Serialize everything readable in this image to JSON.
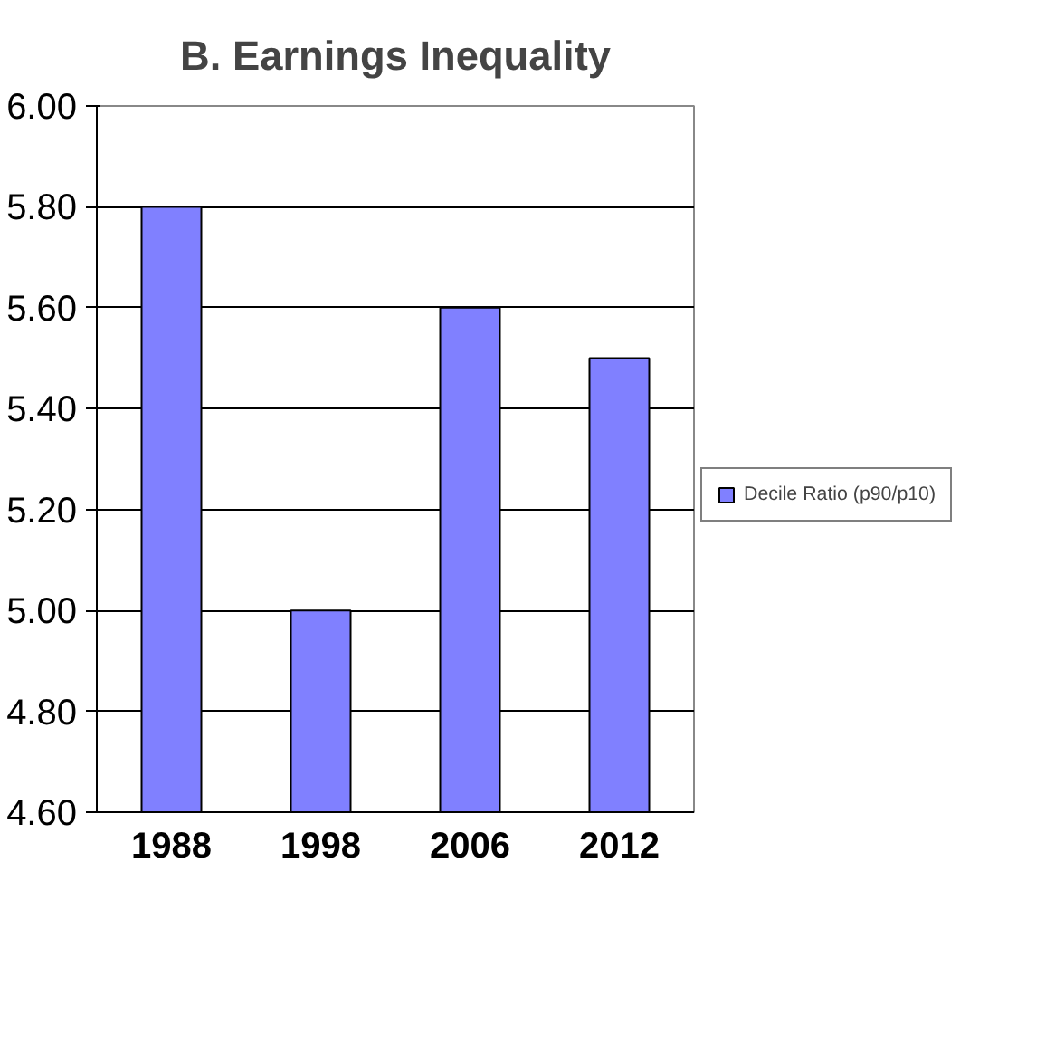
{
  "chart_data": {
    "type": "bar",
    "title": "B. Earnings Inequality",
    "categories": [
      "1988",
      "1998",
      "2006",
      "2012"
    ],
    "series": [
      {
        "name": "Decile Ratio (p90/p10)",
        "color": "#8080ff",
        "values": [
          5.8,
          5.0,
          5.6,
          5.5
        ]
      }
    ],
    "ylim": [
      4.6,
      6.0
    ],
    "yticks": [
      {
        "value": 4.6,
        "label": "4.60"
      },
      {
        "value": 4.8,
        "label": "4.80"
      },
      {
        "value": 5.0,
        "label": "5.00"
      },
      {
        "value": 5.2,
        "label": "5.20"
      },
      {
        "value": 5.4,
        "label": "5.40"
      },
      {
        "value": 5.6,
        "label": "5.60"
      },
      {
        "value": 5.8,
        "label": "5.80"
      },
      {
        "value": 6.0,
        "label": "6.00"
      }
    ],
    "grid": "y",
    "legend": "right"
  }
}
